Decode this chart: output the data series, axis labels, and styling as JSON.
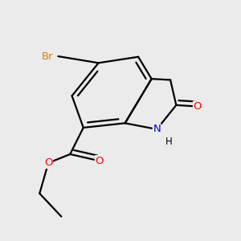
{
  "bg_color": "#ebebeb",
  "atom_colors": {
    "C": "#000000",
    "N": "#0000cc",
    "O": "#ff0000",
    "Br": "#cc8800"
  },
  "bond_color": "#000000",
  "bond_width": 1.6
}
